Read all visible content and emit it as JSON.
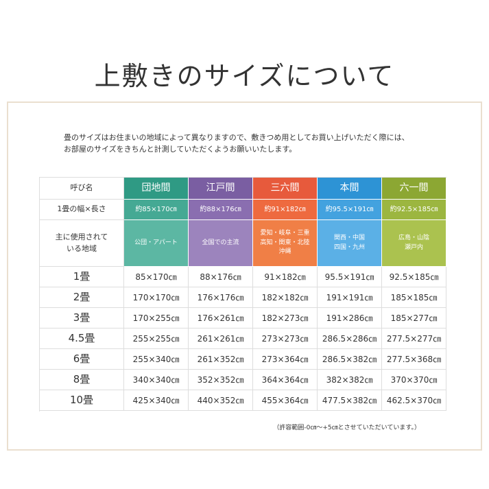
{
  "title": "上敷きのサイズについて",
  "intro": [
    "畳のサイズはお住まいの地域によって異なりますので、敷きつめ用としてお買い上げいただく際には、",
    "お部屋のサイズをきちんと計測していただくようお願いいたします。"
  ],
  "table": {
    "header": [
      "呼び名",
      "団地間",
      "江戸間",
      "三六間",
      "本間",
      "六一間"
    ],
    "size_row": [
      "1畳の幅×長さ",
      "約85×170㎝",
      "約88×176㎝",
      "約91×182㎝",
      "約95.5×191㎝",
      "約92.5×185㎝"
    ],
    "region_row": [
      [
        "主に使用されて",
        "いる地域"
      ],
      [
        "公団・アパート"
      ],
      [
        "全国での主流"
      ],
      [
        "愛知・岐阜・三重",
        "高知・関東・北陸",
        "沖縄"
      ],
      [
        "関西・中国",
        "四国・九州"
      ],
      [
        "広島・山陰",
        "瀬戸内"
      ]
    ],
    "rows": [
      [
        "1畳",
        "85×170㎝",
        "88×176㎝",
        "91×182㎝",
        "95.5×191㎝",
        "92.5×185㎝"
      ],
      [
        "2畳",
        "170×170㎝",
        "176×176㎝",
        "182×182㎝",
        "191×191㎝",
        "185×185㎝"
      ],
      [
        "3畳",
        "170×255㎝",
        "176×261㎝",
        "182×273㎝",
        "191×286㎝",
        "185×277㎝"
      ],
      [
        "4.5畳",
        "255×255㎝",
        "261×261㎝",
        "273×273㎝",
        "286.5×286㎝",
        "277.5×277㎝"
      ],
      [
        "6畳",
        "255×340㎝",
        "261×352㎝",
        "273×364㎝",
        "286.5×382㎝",
        "277.5×368㎝"
      ],
      [
        "8畳",
        "340×340㎝",
        "352×352㎝",
        "364×364㎝",
        "382×382㎝",
        "370×370㎝"
      ],
      [
        "10畳",
        "425×340㎝",
        "440×352㎝",
        "455×364㎝",
        "477.5×382㎝",
        "462.5×370㎝"
      ]
    ]
  },
  "note": "（許容範囲-0㎝〜+5㎝とさせていただいています。）"
}
